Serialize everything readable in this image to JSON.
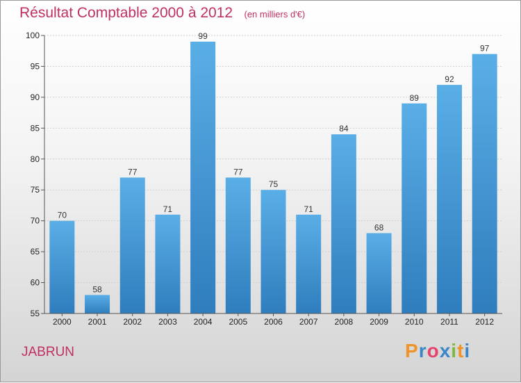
{
  "chart_data": {
    "type": "bar",
    "title": "Résultat Comptable 2000 à 2012",
    "subtitle": "(en milliers d'€)",
    "categories": [
      "2000",
      "2001",
      "2002",
      "2003",
      "2004",
      "2005",
      "2006",
      "2007",
      "2008",
      "2009",
      "2010",
      "2011",
      "2012"
    ],
    "values": [
      70,
      58,
      77,
      71,
      99,
      77,
      75,
      71,
      84,
      68,
      89,
      92,
      97
    ],
    "ylim": [
      55,
      100
    ],
    "yticks": [
      55,
      60,
      65,
      70,
      75,
      80,
      85,
      90,
      95,
      100
    ],
    "xlabel": "",
    "ylabel": "",
    "grid": true,
    "bar_color": "#4a9ad8"
  },
  "commune": "JABRUN",
  "logo": {
    "text": "Proxiti",
    "letters": [
      {
        "ch": "P",
        "color": "#f0932b"
      },
      {
        "ch": "r",
        "color": "#3a86c8"
      },
      {
        "ch": "o",
        "color": "#e5436e"
      },
      {
        "ch": "x",
        "color": "#3a86c8"
      },
      {
        "ch": "i",
        "color": "#7cb83c"
      },
      {
        "ch": "t",
        "color": "#f0932b"
      },
      {
        "ch": "i",
        "color": "#3a86c8"
      }
    ]
  }
}
